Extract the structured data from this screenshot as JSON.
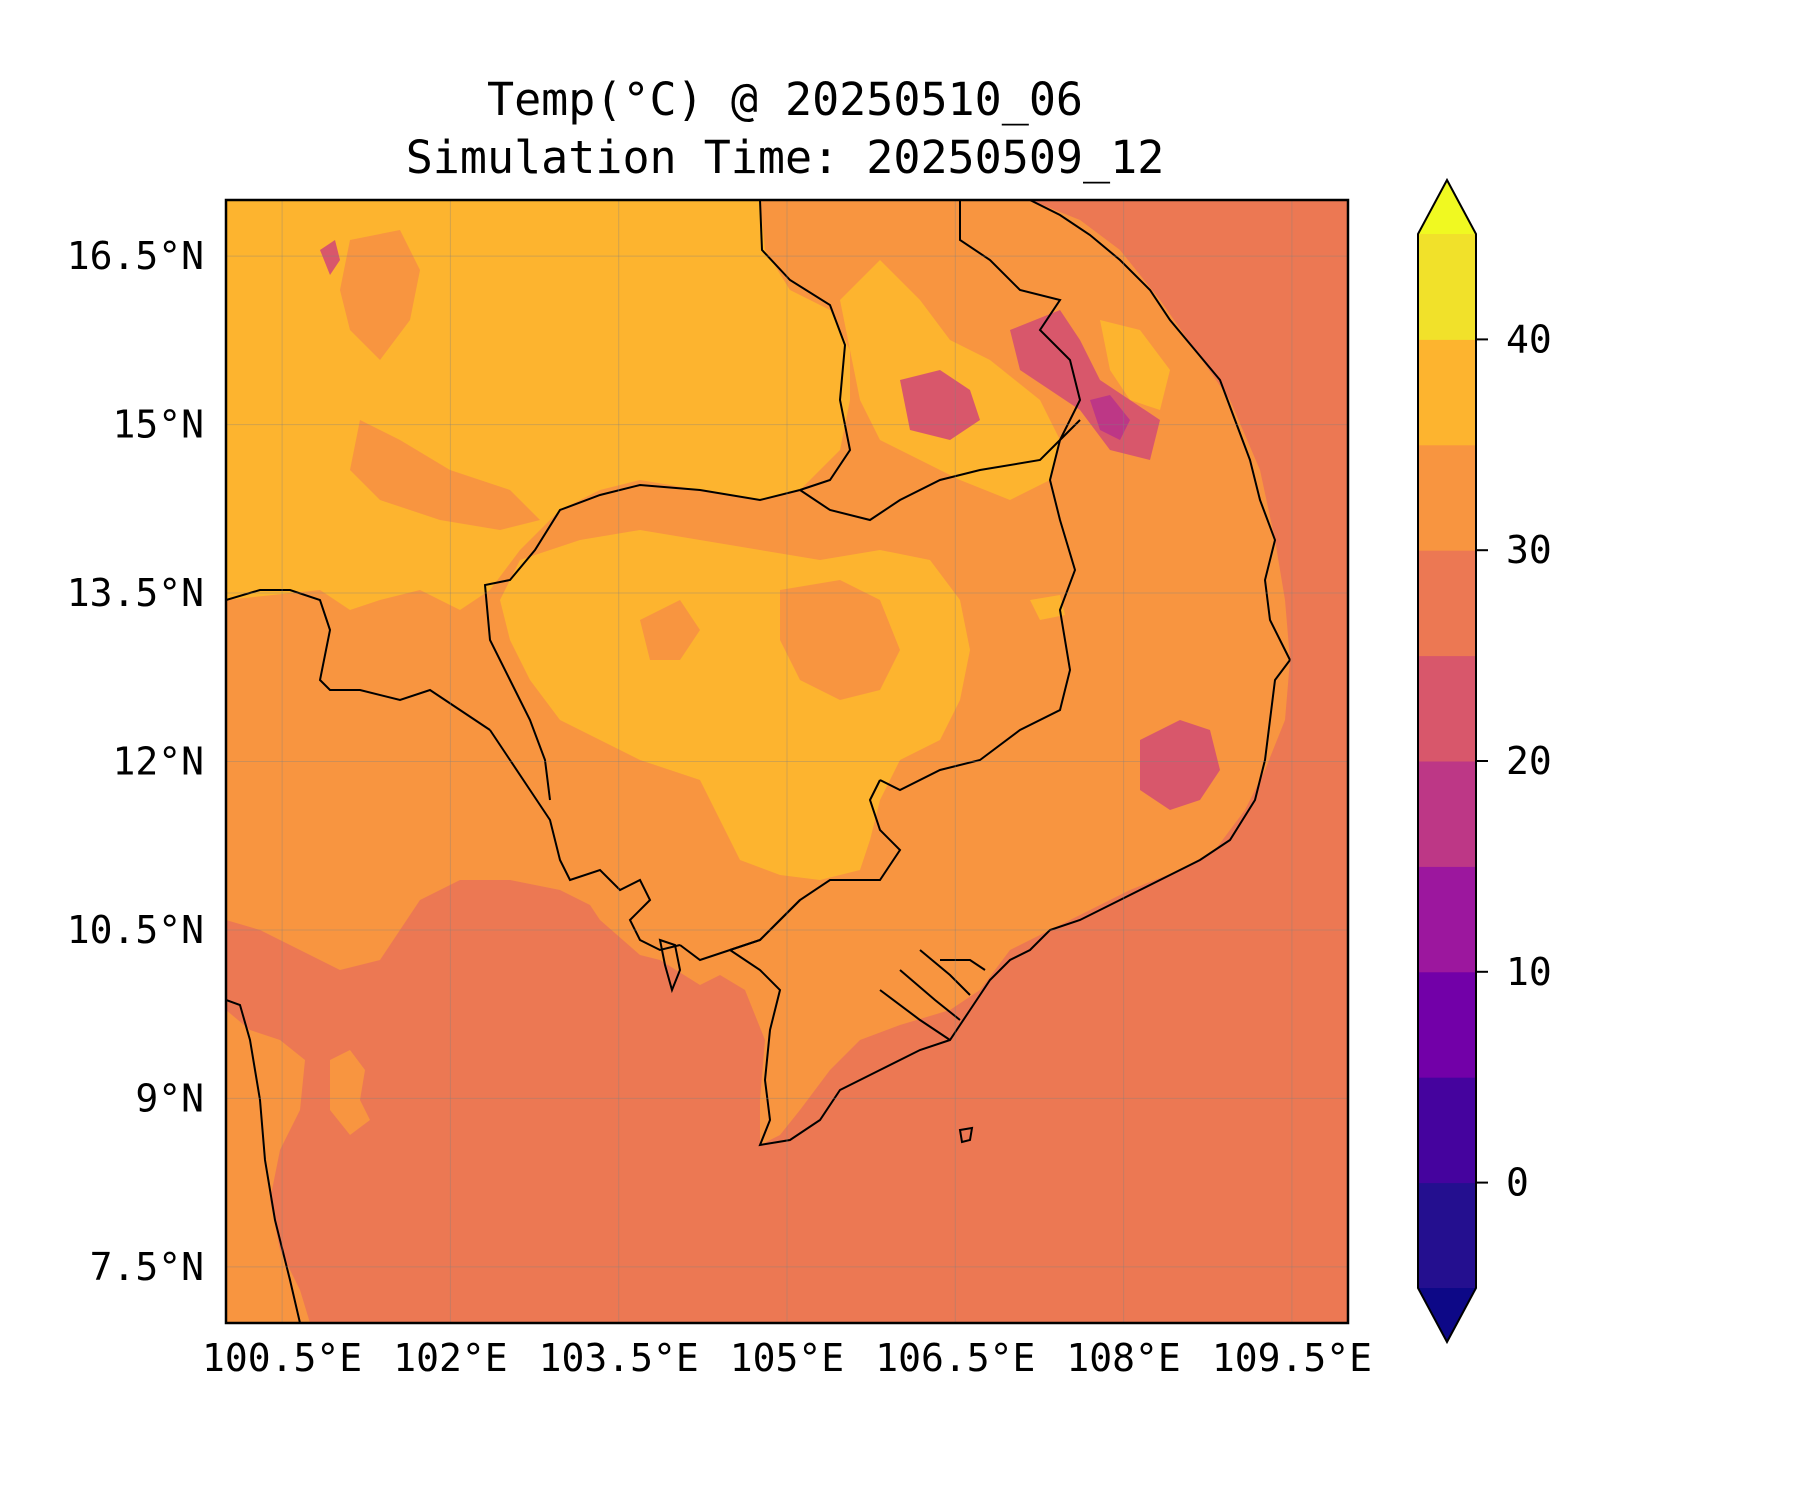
{
  "title": {
    "line1": "Temp(°C) @ 20250510_06",
    "line2": "Simulation Time: 20250509_12"
  },
  "map": {
    "lon_range": [
      100.0,
      110.0
    ],
    "lat_range": [
      7.0,
      17.0
    ],
    "gridlines": true,
    "lon_ticks": [
      {
        "value": 100.5,
        "label": "100.5°E"
      },
      {
        "value": 102.0,
        "label": "102°E"
      },
      {
        "value": 103.5,
        "label": "103.5°E"
      },
      {
        "value": 105.0,
        "label": "105°E"
      },
      {
        "value": 106.5,
        "label": "106.5°E"
      },
      {
        "value": 108.0,
        "label": "108°E"
      },
      {
        "value": 109.5,
        "label": "109.5°E"
      }
    ],
    "lat_ticks": [
      {
        "value": 16.5,
        "label": "16.5°N"
      },
      {
        "value": 15.0,
        "label": "15°N"
      },
      {
        "value": 13.5,
        "label": "13.5°N"
      },
      {
        "value": 12.0,
        "label": "12°N"
      },
      {
        "value": 10.5,
        "label": "10.5°N"
      },
      {
        "value": 9.0,
        "label": "9°N"
      },
      {
        "value": 7.5,
        "label": "7.5°N"
      }
    ]
  },
  "colorbar": {
    "colormap": "plasma",
    "extend": "both",
    "range": [
      -5,
      45
    ],
    "levels": [
      -5,
      0,
      5,
      10,
      15,
      20,
      25,
      30,
      35,
      40,
      45
    ],
    "colors": [
      "#240f8f",
      "#45039e",
      "#7200a8",
      "#9c179e",
      "#bd3786",
      "#d8576b",
      "#ec7853",
      "#f89540",
      "#fdb42f",
      "#f1e12a"
    ],
    "under_color": "#0d0887",
    "over_color": "#f0f921",
    "ticks": [
      {
        "value": 0,
        "label": "0"
      },
      {
        "value": 10,
        "label": "10"
      },
      {
        "value": 20,
        "label": "20"
      },
      {
        "value": 30,
        "label": "30"
      },
      {
        "value": 40,
        "label": "40"
      }
    ]
  }
}
